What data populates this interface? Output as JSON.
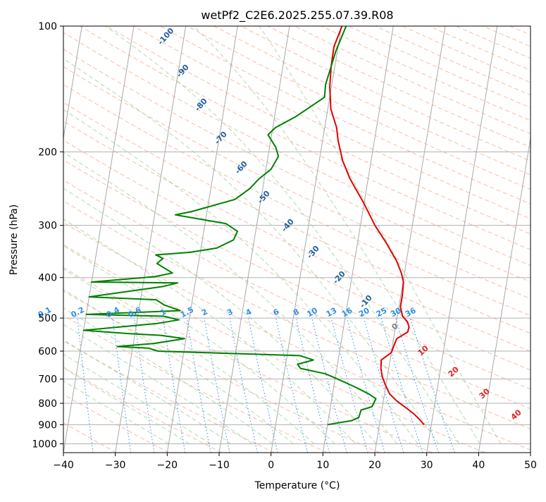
{
  "chart_data": {
    "type": "line",
    "title": "wetPf2_C2E6.2025.255.07.39.R08",
    "xlabel": "Temperature (°C)",
    "ylabel": "Pressure (hPa)",
    "xlim": [
      -40,
      50
    ],
    "ylim": [
      1050,
      100
    ],
    "y_scale": "log",
    "grid": true,
    "x_ticks": [
      -40,
      -30,
      -20,
      -10,
      0,
      10,
      20,
      30,
      40,
      50
    ],
    "y_ticks": [
      100,
      200,
      300,
      400,
      500,
      600,
      700,
      800,
      900,
      1000
    ],
    "colors": {
      "temperature": "#e00000",
      "dewpoint": "#008000",
      "isotherm": "#a8a8a8",
      "dry_adiabat": "#f4a58a",
      "moist_adiabat": "#8fc98f",
      "mixing_ratio": "#2f8fe6",
      "isobar": "#b0b0b0"
    },
    "series": [
      {
        "key": "temperature",
        "points": [
          [
            28.6,
            900
          ],
          [
            27.8,
            880
          ],
          [
            26.4,
            850
          ],
          [
            24.6,
            820
          ],
          [
            22.6,
            790
          ],
          [
            21.0,
            760
          ],
          [
            19.8,
            720
          ],
          [
            19.0,
            690
          ],
          [
            18.5,
            660
          ],
          [
            18.3,
            630
          ],
          [
            20.0,
            605
          ],
          [
            20.3,
            580
          ],
          [
            20.6,
            560
          ],
          [
            22.5,
            540
          ],
          [
            22.6,
            525
          ],
          [
            22.1,
            510
          ],
          [
            21.0,
            495
          ],
          [
            20.3,
            470
          ],
          [
            20.3,
            440
          ],
          [
            20.1,
            410
          ],
          [
            19.4,
            390
          ],
          [
            18.1,
            365
          ],
          [
            15.5,
            330
          ],
          [
            12.8,
            300
          ],
          [
            9.9,
            265
          ],
          [
            6.5,
            232
          ],
          [
            4.5,
            210
          ],
          [
            3.0,
            188
          ],
          [
            2.3,
            175
          ],
          [
            0.6,
            158
          ],
          [
            -0.3,
            140
          ],
          [
            -0.7,
            125
          ],
          [
            -0.8,
            112
          ],
          [
            0.1,
            100
          ]
        ]
      },
      {
        "key": "dewpoint",
        "points": [
          [
            10.0,
            900
          ],
          [
            14.5,
            880
          ],
          [
            15.8,
            865
          ],
          [
            16.0,
            830
          ],
          [
            18.0,
            815
          ],
          [
            18.5,
            780
          ],
          [
            17.0,
            760
          ],
          [
            14.0,
            730
          ],
          [
            10.5,
            700
          ],
          [
            8.0,
            680
          ],
          [
            3.0,
            660
          ],
          [
            2.3,
            645
          ],
          [
            5.2,
            630
          ],
          [
            2.5,
            615
          ],
          [
            -25.0,
            600
          ],
          [
            -27.0,
            590
          ],
          [
            -33.0,
            585
          ],
          [
            -26.0,
            575
          ],
          [
            -20.3,
            560
          ],
          [
            -25.0,
            550
          ],
          [
            -31.0,
            545
          ],
          [
            -40.0,
            535
          ],
          [
            -26.0,
            515
          ],
          [
            -22.0,
            505
          ],
          [
            -25.0,
            495
          ],
          [
            -40.0,
            490
          ],
          [
            -22.0,
            480
          ],
          [
            -25.3,
            465
          ],
          [
            -27.0,
            452
          ],
          [
            -40.0,
            445
          ],
          [
            -26.0,
            420
          ],
          [
            -23.4,
            412
          ],
          [
            -40.0,
            410
          ],
          [
            -28.0,
            398
          ],
          [
            -24.7,
            390
          ],
          [
            -27.0,
            376
          ],
          [
            -28.0,
            370
          ],
          [
            -27.0,
            360
          ],
          [
            -28.5,
            353
          ],
          [
            -22.0,
            348
          ],
          [
            -17.0,
            340
          ],
          [
            -14.0,
            325
          ],
          [
            -13.5,
            310
          ],
          [
            -16.0,
            297
          ],
          [
            -26.0,
            283
          ],
          [
            -23.0,
            278
          ],
          [
            -15.0,
            260
          ],
          [
            -12.5,
            245
          ],
          [
            -11.0,
            232
          ],
          [
            -9.0,
            220
          ],
          [
            -8.0,
            205
          ],
          [
            -8.8,
            195
          ],
          [
            -10.7,
            182
          ],
          [
            -9.5,
            175
          ],
          [
            -6.0,
            165
          ],
          [
            -1.0,
            148
          ],
          [
            -1.2,
            138
          ],
          [
            -0.7,
            125
          ],
          [
            -0.3,
            115
          ],
          [
            0.9,
            100
          ]
        ]
      }
    ],
    "dry_adiabat_labels": [
      "-100",
      "-90",
      "-80",
      "-70",
      "-60",
      "-50",
      "-40",
      "-30",
      "-20",
      "-10"
    ],
    "moist_adiabat_labels": [
      "0",
      "10",
      "20",
      "30",
      "40"
    ],
    "mixing_ratio_labels": [
      "0.1",
      "0.2",
      "0.4",
      "0.6",
      "1",
      "1.5",
      "2",
      "3",
      "4",
      "6",
      "8",
      "10",
      "13",
      "16",
      "20",
      "25",
      "30",
      "36"
    ]
  }
}
